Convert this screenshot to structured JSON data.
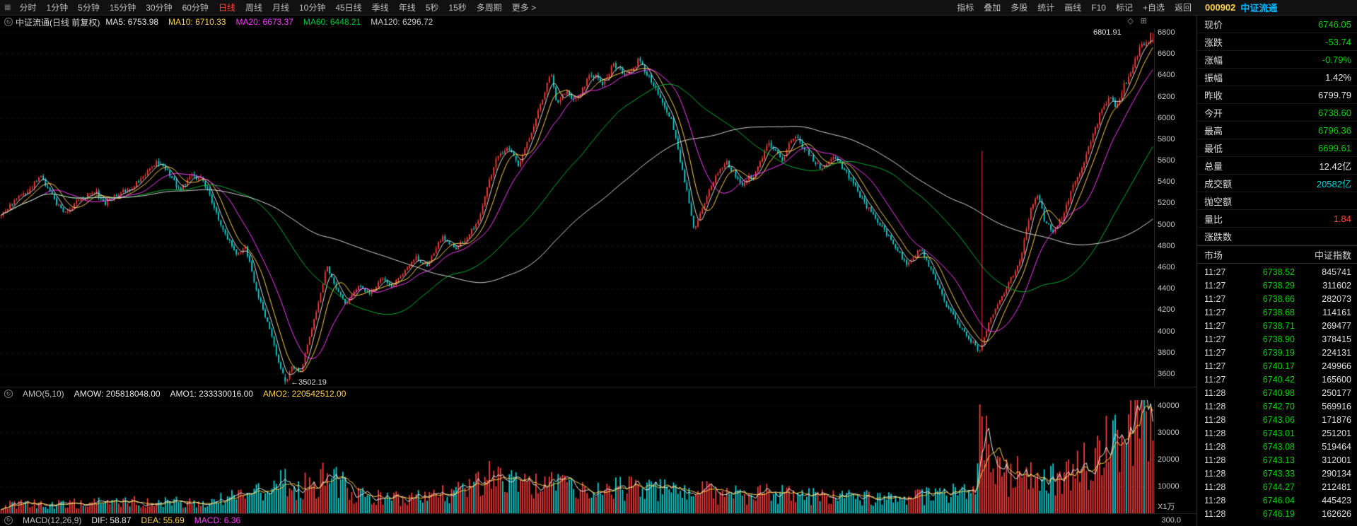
{
  "colors": {
    "up": "#ff3a3a",
    "down": "#00d7d7",
    "green": "#00d200",
    "red": "#ff4632",
    "cyan": "#00d2d2",
    "yellow": "#ffd24a",
    "magenta": "#ff3cff",
    "white": "#e8e8e8",
    "name_blue": "#00b4ff",
    "code_yellow": "#ffd24a"
  },
  "topbar": {
    "periods": [
      {
        "label": "分时",
        "active": false
      },
      {
        "label": "1分钟",
        "active": false
      },
      {
        "label": "5分钟",
        "active": false
      },
      {
        "label": "15分钟",
        "active": false
      },
      {
        "label": "30分钟",
        "active": false
      },
      {
        "label": "60分钟",
        "active": false
      },
      {
        "label": "日线",
        "active": true
      },
      {
        "label": "周线",
        "active": false
      },
      {
        "label": "月线",
        "active": false
      },
      {
        "label": "10分钟",
        "active": false
      },
      {
        "label": "45日线",
        "active": false
      },
      {
        "label": "季线",
        "active": false
      },
      {
        "label": "年线",
        "active": false
      },
      {
        "label": "5秒",
        "active": false
      },
      {
        "label": "15秒",
        "active": false
      },
      {
        "label": "多周期",
        "active": false
      },
      {
        "label": "更多 >",
        "active": false
      }
    ],
    "tools": [
      "指标",
      "叠加",
      "多股",
      "统计",
      "画线",
      "F10",
      "标记",
      "+自选",
      "返回"
    ],
    "stock_code": "000902",
    "stock_name": "中证流通"
  },
  "chart": {
    "title": "中证流通(日线 前复权)",
    "ma_labels": [
      {
        "text": "MA5: 6753.98",
        "color": "#e8e8e8"
      },
      {
        "text": "MA10: 6710.33",
        "color": "#ffd24a"
      },
      {
        "text": "MA20: 6673.37",
        "color": "#ff3cff"
      },
      {
        "text": "MA60: 6448.21",
        "color": "#00c832"
      },
      {
        "text": "MA120: 6296.72",
        "color": "#c8c8c8"
      }
    ],
    "high_annotation": "6801.91",
    "low_annotation": "←3502.19",
    "amo": {
      "title": "AMO(5,10)",
      "amow": "AMOW: 205818048.00",
      "amo1": "AMO1: 233330016.00",
      "amo2": "AMO2: 220542512.00"
    },
    "macd": {
      "title": "MACD(12,26,9)",
      "dif": "DIF: 58.87",
      "dea": "DEA: 55.69",
      "macd": "MACD: 6.36",
      "axis_label": "300.0"
    },
    "volume_unit": "X1万"
  },
  "sidebar": {
    "quote": [
      {
        "label": "现价",
        "value": "6746.05",
        "color": "#00d200"
      },
      {
        "label": "涨跌",
        "value": "-53.74",
        "color": "#00d200"
      },
      {
        "label": "涨幅",
        "value": "-0.79%",
        "color": "#00d200"
      },
      {
        "label": "振幅",
        "value": "1.42%",
        "color": "#e8e8e8"
      },
      {
        "label": "昨收",
        "value": "6799.79",
        "color": "#e8e8e8"
      },
      {
        "label": "今开",
        "value": "6738.60",
        "color": "#00d200"
      },
      {
        "label": "最高",
        "value": "6796.36",
        "color": "#00d200"
      },
      {
        "label": "最低",
        "value": "6699.61",
        "color": "#00d200"
      },
      {
        "label": "总量",
        "value": "12.42亿",
        "color": "#e8e8e8"
      },
      {
        "label": "成交额",
        "value": "20582亿",
        "color": "#00d2d2"
      },
      {
        "label": "抛空额",
        "value": "",
        "color": "#e8e8e8"
      },
      {
        "label": "量比",
        "value": "1.84",
        "color": "#ff4632"
      },
      {
        "label": "涨跌数",
        "value": "",
        "color": "#e8e8e8"
      }
    ],
    "market": {
      "label": "市场",
      "value": "中证指数"
    },
    "tick_price_color": "#00d200",
    "tick_volume_color": "#e0e0e0",
    "ticks": [
      [
        "11:27",
        "6738.52",
        "845741"
      ],
      [
        "11:27",
        "6738.29",
        "311602"
      ],
      [
        "11:27",
        "6738.66",
        "282073"
      ],
      [
        "11:27",
        "6738.68",
        "114161"
      ],
      [
        "11:27",
        "6738.71",
        "269477"
      ],
      [
        "11:27",
        "6738.90",
        "378415"
      ],
      [
        "11:27",
        "6739.19",
        "224131"
      ],
      [
        "11:27",
        "6740.17",
        "249966"
      ],
      [
        "11:27",
        "6740.42",
        "165600"
      ],
      [
        "11:28",
        "6740.98",
        "250177"
      ],
      [
        "11:28",
        "6742.70",
        "569916"
      ],
      [
        "11:28",
        "6743.06",
        "171876"
      ],
      [
        "11:28",
        "6743.01",
        "251201"
      ],
      [
        "11:28",
        "6743.08",
        "519464"
      ],
      [
        "11:28",
        "6743.13",
        "312001"
      ],
      [
        "11:28",
        "6743.33",
        "290134"
      ],
      [
        "11:28",
        "6744.27",
        "212481"
      ],
      [
        "11:28",
        "6746.04",
        "445423"
      ],
      [
        "11:28",
        "6746.19",
        "162626"
      ]
    ]
  },
  "chart_data": {
    "type": "candlestick",
    "symbol": "000902",
    "name": "中证流通",
    "period": "日线 前复权",
    "price_range": [
      3480,
      6840
    ],
    "price_gridlines": [
      6800,
      6600,
      6400,
      6200,
      6000,
      5800,
      5600,
      5400,
      5200,
      5000,
      4800,
      4600,
      4400,
      4200,
      4000,
      3800,
      3600
    ],
    "volume_range": [
      0,
      42000
    ],
    "volume_gridlines": [
      10000,
      20000,
      30000,
      40000
    ],
    "num_candles": 520,
    "noise_seed": 9,
    "period_high": 6801.91,
    "period_low": 3502.19,
    "low_t": 0.247,
    "spike_t": 0.851,
    "spike_high": 5690,
    "last": {
      "open": 6738.6,
      "high": 6796.36,
      "low": 6699.61,
      "close": 6746.05,
      "prev_close": 6799.79
    },
    "ma_values": {
      "MA5": 6753.98,
      "MA10": 6710.33,
      "MA20": 6673.37,
      "MA60": 6448.21,
      "MA120": 6296.72
    },
    "amo_values": {
      "AMOW": 205818048.0,
      "AMO1": 233330016.0,
      "AMO2": 220542512.0
    },
    "macd_values": {
      "DIF": 58.87,
      "DEA": 55.69,
      "MACD": 6.36
    },
    "price_anchors": [
      [
        0.0,
        5080
      ],
      [
        0.022,
        5300
      ],
      [
        0.034,
        5470
      ],
      [
        0.048,
        5200
      ],
      [
        0.056,
        5120
      ],
      [
        0.068,
        5260
      ],
      [
        0.082,
        5320
      ],
      [
        0.09,
        5180
      ],
      [
        0.1,
        5260
      ],
      [
        0.112,
        5320
      ],
      [
        0.125,
        5470
      ],
      [
        0.138,
        5590
      ],
      [
        0.148,
        5450
      ],
      [
        0.155,
        5350
      ],
      [
        0.165,
        5480
      ],
      [
        0.175,
        5430
      ],
      [
        0.185,
        5150
      ],
      [
        0.196,
        4890
      ],
      [
        0.205,
        4700
      ],
      [
        0.212,
        4780
      ],
      [
        0.222,
        4350
      ],
      [
        0.232,
        4050
      ],
      [
        0.24,
        3760
      ],
      [
        0.247,
        3530
      ],
      [
        0.253,
        3690
      ],
      [
        0.26,
        3620
      ],
      [
        0.268,
        3950
      ],
      [
        0.276,
        4300
      ],
      [
        0.283,
        4640
      ],
      [
        0.29,
        4420
      ],
      [
        0.3,
        4230
      ],
      [
        0.31,
        4400
      ],
      [
        0.32,
        4330
      ],
      [
        0.33,
        4500
      ],
      [
        0.34,
        4420
      ],
      [
        0.352,
        4580
      ],
      [
        0.36,
        4700
      ],
      [
        0.37,
        4640
      ],
      [
        0.383,
        4900
      ],
      [
        0.395,
        4760
      ],
      [
        0.405,
        4880
      ],
      [
        0.415,
        5050
      ],
      [
        0.422,
        5350
      ],
      [
        0.43,
        5600
      ],
      [
        0.44,
        5720
      ],
      [
        0.45,
        5560
      ],
      [
        0.46,
        5880
      ],
      [
        0.47,
        6180
      ],
      [
        0.477,
        6420
      ],
      [
        0.483,
        6120
      ],
      [
        0.49,
        6260
      ],
      [
        0.5,
        6160
      ],
      [
        0.512,
        6390
      ],
      [
        0.522,
        6300
      ],
      [
        0.532,
        6480
      ],
      [
        0.543,
        6390
      ],
      [
        0.553,
        6540
      ],
      [
        0.562,
        6400
      ],
      [
        0.572,
        6220
      ],
      [
        0.582,
        6000
      ],
      [
        0.592,
        5500
      ],
      [
        0.602,
        4920
      ],
      [
        0.61,
        5180
      ],
      [
        0.62,
        5430
      ],
      [
        0.63,
        5580
      ],
      [
        0.643,
        5360
      ],
      [
        0.655,
        5480
      ],
      [
        0.666,
        5780
      ],
      [
        0.678,
        5640
      ],
      [
        0.688,
        5830
      ],
      [
        0.7,
        5690
      ],
      [
        0.712,
        5510
      ],
      [
        0.724,
        5610
      ],
      [
        0.736,
        5420
      ],
      [
        0.748,
        5230
      ],
      [
        0.76,
        5060
      ],
      [
        0.772,
        4880
      ],
      [
        0.786,
        4620
      ],
      [
        0.798,
        4790
      ],
      [
        0.81,
        4520
      ],
      [
        0.82,
        4230
      ],
      [
        0.83,
        4060
      ],
      [
        0.84,
        3930
      ],
      [
        0.85,
        3810
      ],
      [
        0.858,
        4090
      ],
      [
        0.868,
        4310
      ],
      [
        0.877,
        4520
      ],
      [
        0.886,
        4740
      ],
      [
        0.894,
        5180
      ],
      [
        0.9,
        5280
      ],
      [
        0.906,
        5030
      ],
      [
        0.914,
        4920
      ],
      [
        0.922,
        5090
      ],
      [
        0.93,
        5330
      ],
      [
        0.94,
        5560
      ],
      [
        0.948,
        5820
      ],
      [
        0.956,
        6080
      ],
      [
        0.962,
        6220
      ],
      [
        0.968,
        6120
      ],
      [
        0.975,
        6330
      ],
      [
        0.982,
        6480
      ],
      [
        0.99,
        6700
      ],
      [
        1.0,
        6750
      ]
    ],
    "volume_anchors": [
      [
        0.0,
        3200
      ],
      [
        0.06,
        3600
      ],
      [
        0.12,
        4200
      ],
      [
        0.17,
        4500
      ],
      [
        0.2,
        6000
      ],
      [
        0.23,
        8500
      ],
      [
        0.247,
        11500
      ],
      [
        0.26,
        9000
      ],
      [
        0.283,
        13500
      ],
      [
        0.31,
        6500
      ],
      [
        0.35,
        5200
      ],
      [
        0.38,
        6500
      ],
      [
        0.41,
        9000
      ],
      [
        0.425,
        13500
      ],
      [
        0.45,
        9500
      ],
      [
        0.48,
        11000
      ],
      [
        0.51,
        8500
      ],
      [
        0.55,
        9500
      ],
      [
        0.58,
        8000
      ],
      [
        0.6,
        9000
      ],
      [
        0.63,
        6500
      ],
      [
        0.67,
        7500
      ],
      [
        0.7,
        6500
      ],
      [
        0.73,
        6000
      ],
      [
        0.76,
        5500
      ],
      [
        0.79,
        6000
      ],
      [
        0.81,
        6500
      ],
      [
        0.83,
        7500
      ],
      [
        0.845,
        9000
      ],
      [
        0.851,
        36000
      ],
      [
        0.86,
        17000
      ],
      [
        0.875,
        13000
      ],
      [
        0.89,
        15000
      ],
      [
        0.9,
        17000
      ],
      [
        0.91,
        12000
      ],
      [
        0.93,
        15000
      ],
      [
        0.945,
        19000
      ],
      [
        0.958,
        23000
      ],
      [
        0.97,
        26000
      ],
      [
        0.982,
        33000
      ],
      [
        0.99,
        40000
      ],
      [
        1.0,
        27000
      ]
    ]
  }
}
